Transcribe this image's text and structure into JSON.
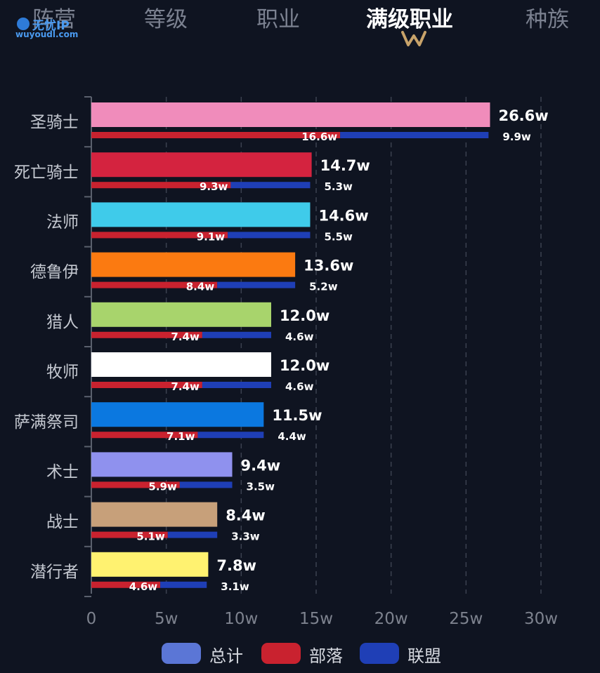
{
  "tabs": [
    {
      "label": "阵营",
      "active": false
    },
    {
      "label": "等级",
      "active": false
    },
    {
      "label": "职业",
      "active": false
    },
    {
      "label": "满级职业",
      "active": true
    },
    {
      "label": "种族",
      "active": false
    }
  ],
  "logo": {
    "brand": "无忧IP",
    "url": "wuyoudl.com"
  },
  "colors": {
    "background": "#0f1421",
    "horde": "#c9222f",
    "alliance": "#1f3fb6",
    "total_legend": "#5b76d6",
    "gold_indicator": "#c8a36a"
  },
  "chart_data": {
    "type": "bar",
    "orientation": "horizontal",
    "categories": [
      "圣骑士",
      "死亡骑士",
      "法师",
      "德鲁伊",
      "猎人",
      "牧师",
      "萨满祭司",
      "术士",
      "战士",
      "潜行者"
    ],
    "bar_colors": [
      "#f08cbb",
      "#d4233f",
      "#3fcbea",
      "#fb7a11",
      "#a8d46c",
      "#ffffff",
      "#0b78e0",
      "#8f91ee",
      "#c7a07a",
      "#fff270"
    ],
    "series": [
      {
        "name": "总计",
        "values": [
          26.6,
          14.7,
          14.6,
          13.6,
          12.0,
          12.0,
          11.5,
          9.4,
          8.4,
          7.8
        ],
        "labels": [
          "26.6w",
          "14.7w",
          "14.6w",
          "13.6w",
          "12.0w",
          "12.0w",
          "11.5w",
          "9.4w",
          "8.4w",
          "7.8w"
        ]
      },
      {
        "name": "部落",
        "values": [
          16.6,
          9.3,
          9.1,
          8.4,
          7.4,
          7.4,
          7.1,
          5.9,
          5.1,
          4.6
        ],
        "labels": [
          "16.6w",
          "9.3w",
          "9.1w",
          "8.4w",
          "7.4w",
          "7.4w",
          "7.1w",
          "5.9w",
          "5.1w",
          "4.6w"
        ]
      },
      {
        "name": "联盟",
        "values": [
          9.9,
          5.3,
          5.5,
          5.2,
          4.6,
          4.6,
          4.4,
          3.5,
          3.3,
          3.1
        ],
        "labels": [
          "9.9w",
          "5.3w",
          "5.5w",
          "5.2w",
          "4.6w",
          "4.6w",
          "4.4w",
          "3.5w",
          "3.3w",
          "3.1w"
        ]
      }
    ],
    "x_ticks": [
      0,
      5,
      10,
      15,
      20,
      25,
      30
    ],
    "x_tick_labels": [
      "0",
      "5w",
      "10w",
      "15w",
      "20w",
      "25w",
      "30w"
    ],
    "xlim": [
      0,
      30
    ],
    "grid": "vertical dashed",
    "legend_position": "bottom-center"
  },
  "legend": [
    {
      "label": "总计",
      "color": "#5b76d6"
    },
    {
      "label": "部落",
      "color": "#c9222f"
    },
    {
      "label": "联盟",
      "color": "#1f3fb6"
    }
  ]
}
